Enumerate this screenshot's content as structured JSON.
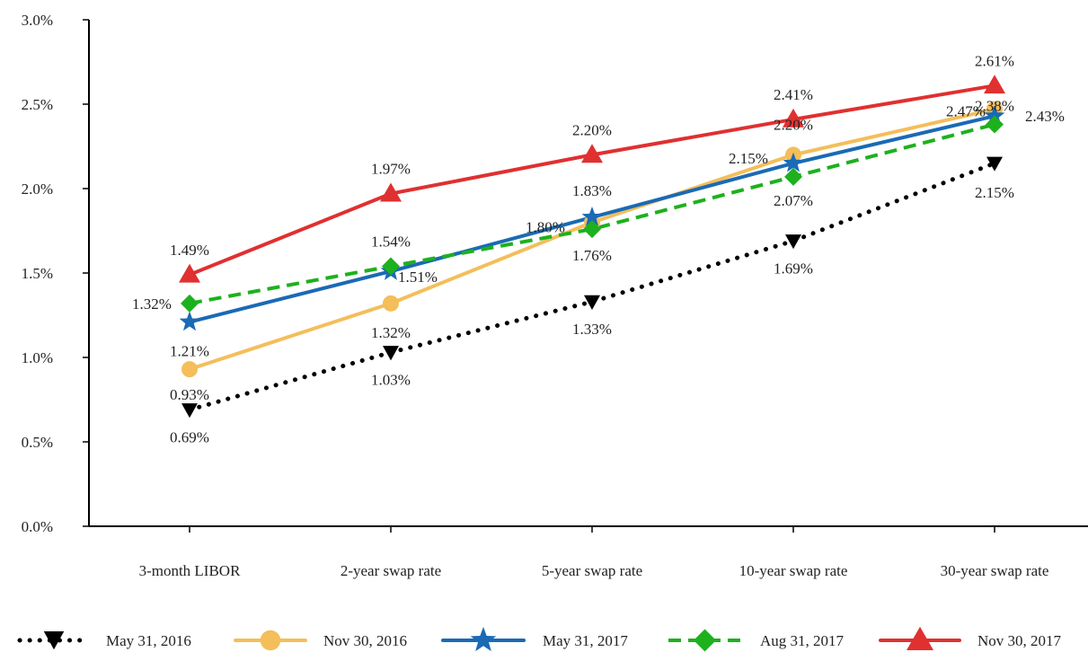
{
  "chart_data": {
    "type": "line",
    "categories": [
      "3-month LIBOR",
      "2-year swap rate",
      "5-year swap rate",
      "10-year swap rate",
      "30-year swap rate"
    ],
    "ylim": [
      0,
      3.0
    ],
    "yticks": [
      "0.0%",
      "0.5%",
      "1.0%",
      "1.5%",
      "2.0%",
      "2.5%",
      "3.0%"
    ],
    "ytick_values": [
      0,
      0.5,
      1.0,
      1.5,
      2.0,
      2.5,
      3.0
    ],
    "grid": false,
    "legend_position": "bottom",
    "series": [
      {
        "name": "May 31, 2016",
        "values": [
          0.69,
          1.03,
          1.33,
          1.69,
          2.15
        ],
        "labels": [
          "0.69%",
          "1.03%",
          "1.33%",
          "1.69%",
          "2.15%"
        ],
        "color": "#000000",
        "style": "dotted",
        "marker": "triangle-down"
      },
      {
        "name": "Nov 30, 2016",
        "values": [
          0.93,
          1.32,
          1.8,
          2.2,
          2.47
        ],
        "labels": [
          "0.93%",
          "1.32%",
          "1.80%",
          "2.20%",
          "2.47%"
        ],
        "color": "#F4BE5A",
        "style": "solid",
        "marker": "circle"
      },
      {
        "name": "May 31, 2017",
        "values": [
          1.21,
          1.51,
          1.83,
          2.15,
          2.43
        ],
        "labels": [
          "1.21%",
          "1.51%",
          "1.83%",
          "2.15%",
          "2.43%"
        ],
        "color": "#1A6AB5",
        "style": "solid",
        "marker": "star"
      },
      {
        "name": "Aug 31, 2017",
        "values": [
          1.32,
          1.54,
          1.76,
          2.07,
          2.38
        ],
        "labels": [
          "1.32%",
          "1.54%",
          "1.76%",
          "2.07%",
          "2.38%"
        ],
        "color": "#1DB11D",
        "style": "dashed",
        "marker": "diamond"
      },
      {
        "name": "Nov 30, 2017",
        "values": [
          1.49,
          1.97,
          2.2,
          2.41,
          2.61
        ],
        "labels": [
          "1.49%",
          "1.97%",
          "2.20%",
          "2.41%",
          "2.61%"
        ],
        "color": "#E03030",
        "style": "solid",
        "marker": "triangle-up"
      }
    ]
  }
}
